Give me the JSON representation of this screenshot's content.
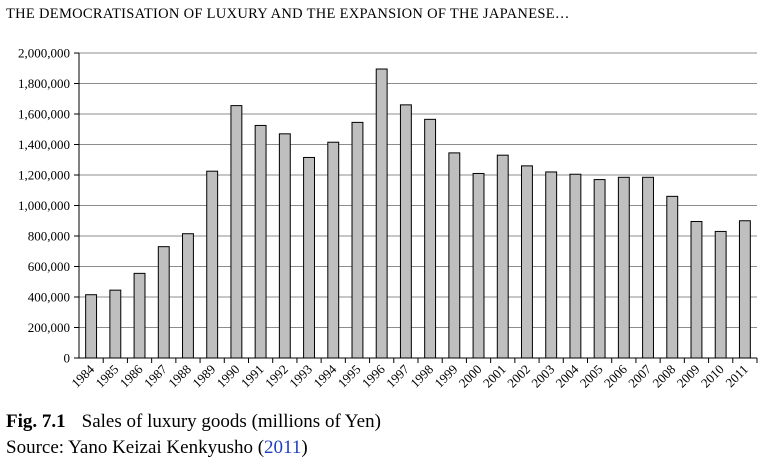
{
  "running_head": "THE DEMOCRATISATION OF LUXURY AND THE EXPANSION OF THE JAPANESE…",
  "caption": {
    "label": "Fig. 7.1",
    "text": "Sales of luxury goods (millions of Yen)"
  },
  "source": {
    "prefix": "Source: Yano Keizai Kenkyusho (",
    "year": "2011",
    "suffix": ")"
  },
  "colors": {
    "bar_fill": "#bfbfbf",
    "bar_stroke": "#000000",
    "gridline": "#8c8c8c",
    "citation_link": "#1f3fbf"
  },
  "chart_data": {
    "type": "bar",
    "title": "",
    "xlabel": "",
    "ylabel": "",
    "ylim": [
      0,
      2000000
    ],
    "yticks": [
      0,
      200000,
      400000,
      600000,
      800000,
      1000000,
      1200000,
      1400000,
      1600000,
      1800000,
      2000000
    ],
    "ytick_labels": [
      "0",
      "200,000",
      "400,000",
      "600,000",
      "800,000",
      "1,000,000",
      "1,200,000",
      "1,400,000",
      "1,600,000",
      "1,800,000",
      "2,000,000"
    ],
    "grid": "horizontal",
    "legend": "none",
    "categories": [
      "1984",
      "1985",
      "1986",
      "1987",
      "1988",
      "1989",
      "1990",
      "1991",
      "1992",
      "1993",
      "1994",
      "1995",
      "1996",
      "1997",
      "1998",
      "1999",
      "2000",
      "2001",
      "2002",
      "2003",
      "2004",
      "2005",
      "2006",
      "2007",
      "2008",
      "2009",
      "2010",
      "2011"
    ],
    "values": [
      415000,
      445000,
      555000,
      730000,
      815000,
      1225000,
      1655000,
      1525000,
      1470000,
      1315000,
      1415000,
      1545000,
      1895000,
      1660000,
      1565000,
      1345000,
      1210000,
      1330000,
      1260000,
      1220000,
      1205000,
      1170000,
      1185000,
      1185000,
      1060000,
      895000,
      830000,
      900000
    ]
  }
}
